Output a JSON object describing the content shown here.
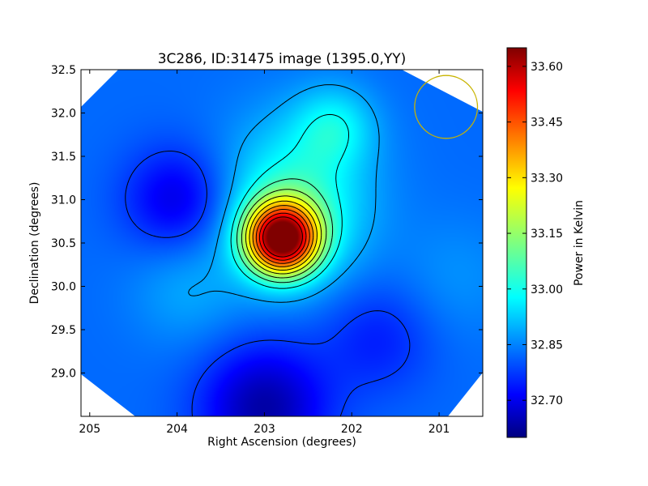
{
  "chart_data": {
    "type": "heatmap",
    "title": "3C286, ID:31475 image (1395.0,YY)",
    "xlabel": "Right Ascension (degrees)",
    "ylabel": "Declination (degrees)",
    "xlim": [
      205.1,
      200.5
    ],
    "ylim": [
      28.5,
      32.5
    ],
    "x_ticks": [
      {
        "value": 205,
        "label": "205"
      },
      {
        "value": 204,
        "label": "204"
      },
      {
        "value": 203,
        "label": "203"
      },
      {
        "value": 202,
        "label": "202"
      },
      {
        "value": 201,
        "label": "201"
      }
    ],
    "y_ticks": [
      {
        "value": 29.0,
        "label": "29.0"
      },
      {
        "value": 29.5,
        "label": "29.5"
      },
      {
        "value": 30.0,
        "label": "30.0"
      },
      {
        "value": 30.5,
        "label": "30.5"
      },
      {
        "value": 31.0,
        "label": "31.0"
      },
      {
        "value": 31.5,
        "label": "31.5"
      },
      {
        "value": 32.0,
        "label": "32.0"
      },
      {
        "value": 32.5,
        "label": "32.5"
      }
    ],
    "colorbar": {
      "label": "Power in Kelvin",
      "range": [
        32.6,
        33.65
      ],
      "ticks": [
        {
          "value": 32.7,
          "label": "32.70"
        },
        {
          "value": 32.85,
          "label": "32.85"
        },
        {
          "value": 33.0,
          "label": "33.00"
        },
        {
          "value": 33.15,
          "label": "33.15"
        },
        {
          "value": 33.3,
          "label": "33.30"
        },
        {
          "value": 33.45,
          "label": "33.45"
        },
        {
          "value": 33.6,
          "label": "33.60"
        }
      ],
      "colormap": "jet"
    },
    "field": {
      "background": 32.84,
      "components": [
        {
          "ra": 202.8,
          "dec": 30.55,
          "amplitude": 0.76,
          "sigma": 0.28
        },
        {
          "ra": 202.7,
          "dec": 30.7,
          "amplitude": 0.15,
          "sigma": 0.55
        },
        {
          "ra": 202.6,
          "dec": 31.3,
          "amplitude": 0.1,
          "sigma": 0.6
        },
        {
          "ra": 202.2,
          "dec": 31.85,
          "amplitude": 0.12,
          "sigma": 0.32
        },
        {
          "ra": 203.9,
          "dec": 29.95,
          "amplitude": 0.06,
          "sigma": 0.45
        },
        {
          "ra": 204.0,
          "dec": 31.0,
          "amplitude": -0.14,
          "sigma": 0.42
        },
        {
          "ra": 203.0,
          "dec": 28.6,
          "amplitude": -0.2,
          "sigma": 0.5
        },
        {
          "ra": 201.7,
          "dec": 29.4,
          "amplitude": -0.08,
          "sigma": 0.45
        },
        {
          "ra": 200.8,
          "dec": 30.1,
          "amplitude": 0.04,
          "sigma": 0.5
        }
      ],
      "contour_levels": [
        32.79,
        32.9,
        33.0,
        33.07,
        33.14,
        33.21,
        33.28,
        33.35,
        33.42,
        33.49,
        33.56
      ]
    },
    "beam": {
      "ra": 200.92,
      "dec": 32.07,
      "radius_deg": 0.36,
      "color": "#c8b400"
    },
    "colors": {
      "contour": "#000000",
      "frame": "#000000"
    }
  }
}
